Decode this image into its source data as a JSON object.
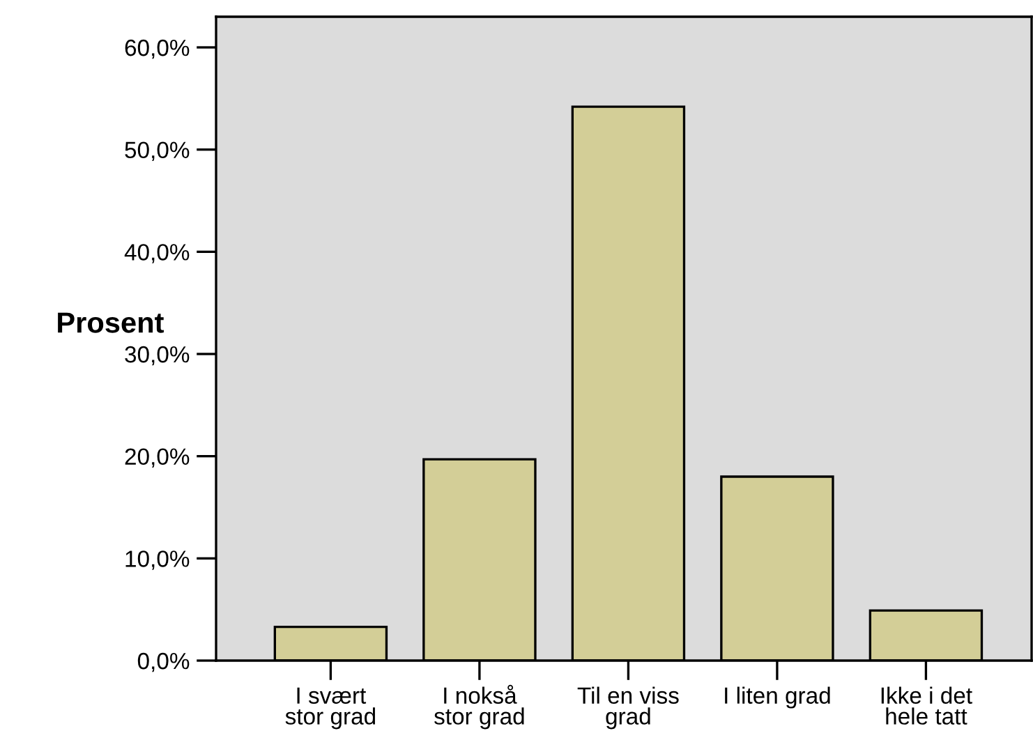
{
  "chart_data": {
    "type": "bar",
    "ylabel": "Prosent",
    "categories": [
      "I svært\nstor grad",
      "I nokså\nstor grad",
      "Til en viss\ngrad",
      "I liten grad",
      "Ikke i det\nhele tatt"
    ],
    "values": [
      3.3,
      19.7,
      54.2,
      18.0,
      4.9
    ],
    "color": "#d3ce97",
    "ylim": [
      0,
      63
    ],
    "yticks": [
      {
        "value": 0,
        "label": "0,0%"
      },
      {
        "value": 10,
        "label": "10,0%"
      },
      {
        "value": 20,
        "label": "20,0%"
      },
      {
        "value": 30,
        "label": "30,0%"
      },
      {
        "value": 40,
        "label": "40,0%"
      },
      {
        "value": 50,
        "label": "50,0%"
      },
      {
        "value": 60,
        "label": "60,0%"
      }
    ],
    "grid": false
  }
}
